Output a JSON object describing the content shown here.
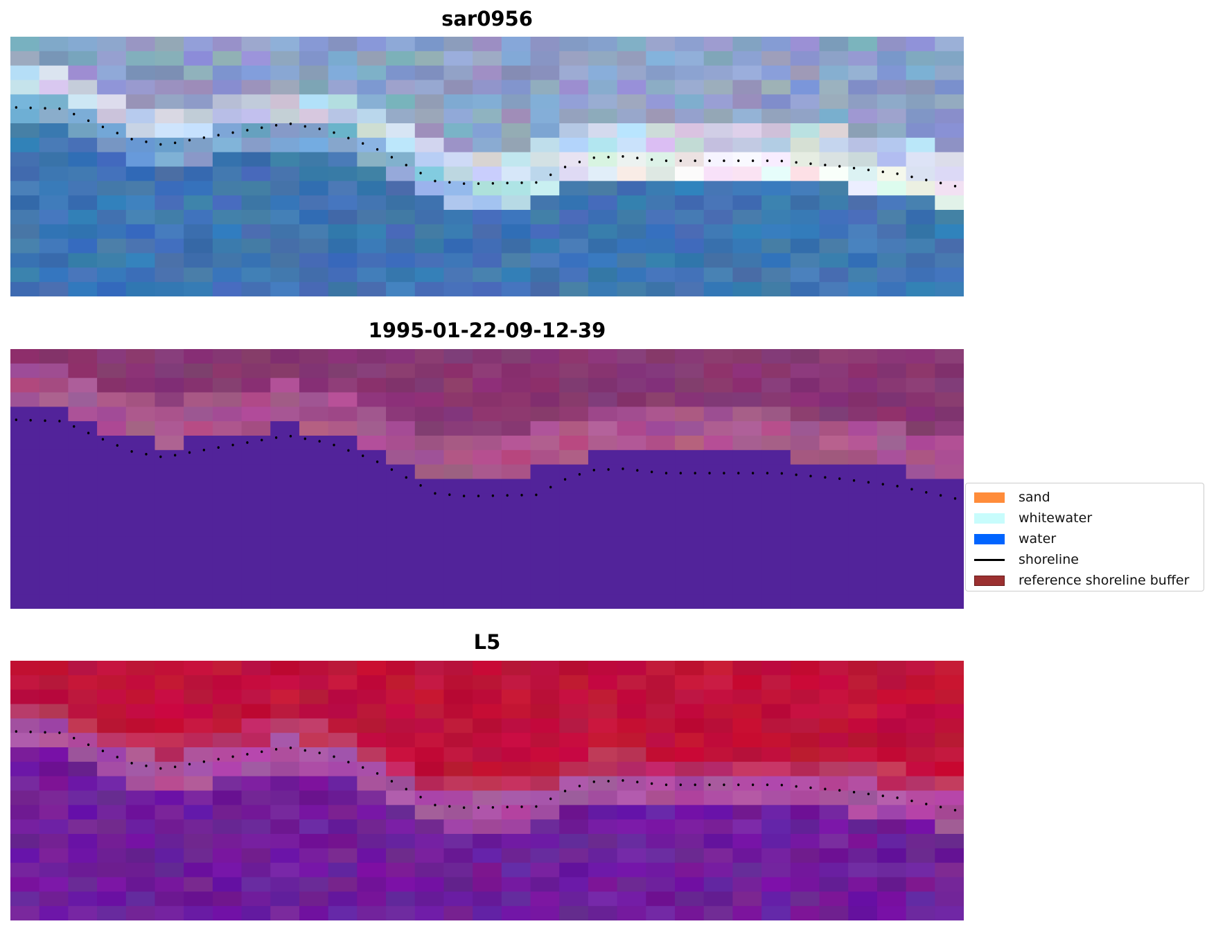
{
  "chart_data": {
    "type": "heatmap",
    "grid": false,
    "image_columns": 33,
    "image_rows": 18,
    "panels": [
      {
        "title": "sar0956",
        "style": "rgb"
      },
      {
        "title": "1995-01-22-09-12-39",
        "style": "classified",
        "water_top_row_per_column": [
          4,
          4,
          5,
          6,
          6,
          7,
          6,
          6,
          6,
          5,
          6,
          6,
          7,
          8,
          9,
          9,
          9,
          9,
          8,
          8,
          7,
          7,
          7,
          7,
          7,
          7,
          7,
          8,
          8,
          8,
          8,
          9,
          9
        ]
      },
      {
        "title": "L5",
        "style": "index"
      }
    ],
    "shoreline": [
      [
        0.2,
        4.9
      ],
      [
        1.8,
        5.0
      ],
      [
        2.9,
        6.0
      ],
      [
        4.2,
        7.1
      ],
      [
        5.3,
        7.5
      ],
      [
        6.4,
        7.1
      ],
      [
        7.7,
        6.65
      ],
      [
        9.6,
        6.0
      ],
      [
        11.0,
        6.5
      ],
      [
        12.6,
        7.7
      ],
      [
        13.7,
        8.9
      ],
      [
        14.7,
        10.0
      ],
      [
        15.8,
        10.2
      ],
      [
        18.25,
        10.1
      ],
      [
        19.1,
        9.1
      ],
      [
        20.1,
        8.4
      ],
      [
        21.2,
        8.3
      ],
      [
        22.6,
        8.6
      ],
      [
        26.6,
        8.6
      ],
      [
        28.8,
        9.0
      ],
      [
        30.7,
        9.5
      ],
      [
        32.8,
        10.4
      ]
    ],
    "legend": {
      "placement": "center-right",
      "items": [
        {
          "label": "sand",
          "kind": "patch",
          "color": "#ff8c3a"
        },
        {
          "label": "whitewater",
          "kind": "patch",
          "color": "#c8fcfc"
        },
        {
          "label": "water",
          "kind": "patch",
          "color": "#0064ff"
        },
        {
          "label": "shoreline",
          "kind": "line",
          "color": "#000000"
        },
        {
          "label": "reference shoreline buffer",
          "kind": "patch",
          "color": "#9b3030"
        }
      ]
    }
  }
}
